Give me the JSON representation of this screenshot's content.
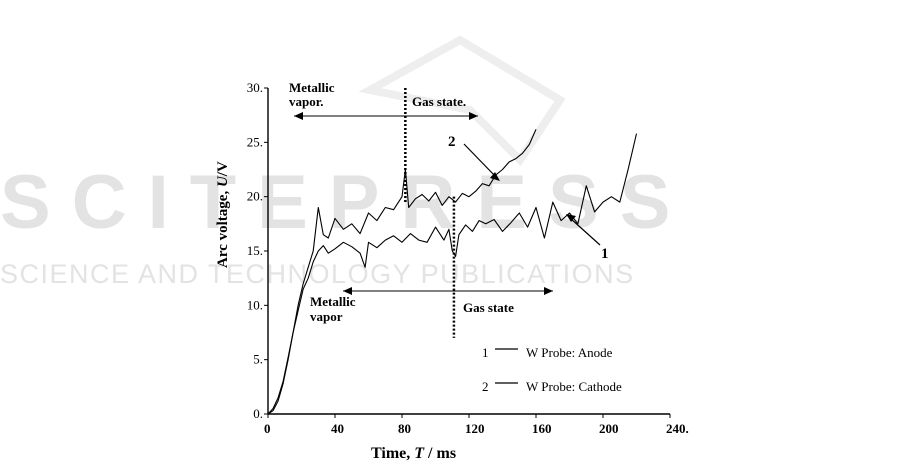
{
  "watermark": {
    "main": "SCITEPRESS",
    "sub": "SCIENCE AND TECHNOLOGY PUBLICATIONS",
    "color": "#e3e3e3"
  },
  "chart_data": {
    "type": "line",
    "xlabel_prefix": "Time, ",
    "xlabel_var": "T",
    "xlabel_unit": " / ms",
    "ylabel_prefix": "Arc voltage, ",
    "ylabel_var": "U",
    "ylabel_unit": "/V",
    "xlim": [
      0,
      240
    ],
    "ylim": [
      0,
      30
    ],
    "x_ticks": [
      "0",
      "40",
      "80",
      "120",
      "160",
      "200",
      "240."
    ],
    "y_ticks": [
      "0.",
      "5.",
      "10.",
      "15.",
      "20.",
      "25.",
      "30."
    ],
    "grid": false,
    "legend": [
      {
        "num": "1",
        "text": "W Probe: Anode"
      },
      {
        "num": "2",
        "text": "W Probe: Cathode"
      }
    ],
    "annotations": {
      "top_metallic_1": "Metallic",
      "top_metallic_2": "vapor.",
      "top_gas": "Gas state.",
      "bottom_metallic_1": "Metallic",
      "bottom_metallic_2": "vapor",
      "bottom_gas": "Gas state",
      "label_1": "1",
      "label_2": "2"
    },
    "dividers": [
      {
        "x": 82,
        "y_from": 30,
        "y_to": 19.5
      },
      {
        "x": 111,
        "y_from": 20,
        "y_to": 7
      }
    ],
    "series": [
      {
        "id": "1",
        "color": "#000000",
        "points": [
          [
            0,
            0
          ],
          [
            3,
            0.5
          ],
          [
            6,
            1.5
          ],
          [
            9,
            3
          ],
          [
            12,
            5.2
          ],
          [
            15,
            7.5
          ],
          [
            18,
            9.5
          ],
          [
            21,
            11.5
          ],
          [
            24,
            12.5
          ],
          [
            27,
            14
          ],
          [
            30,
            15
          ],
          [
            33,
            15.5
          ],
          [
            36,
            14.8
          ],
          [
            40,
            15.2
          ],
          [
            45,
            15.8
          ],
          [
            50,
            15.4
          ],
          [
            55,
            14.8
          ],
          [
            58,
            13.5
          ],
          [
            60,
            15.8
          ],
          [
            65,
            15.3
          ],
          [
            70,
            16
          ],
          [
            75,
            16.4
          ],
          [
            80,
            15.8
          ],
          [
            85,
            16.6
          ],
          [
            90,
            16
          ],
          [
            95,
            15.8
          ],
          [
            100,
            17.2
          ],
          [
            105,
            16
          ],
          [
            108,
            17
          ],
          [
            110,
            15
          ],
          [
            112,
            14.5
          ],
          [
            114,
            16.5
          ],
          [
            118,
            17.4
          ],
          [
            122,
            16.8
          ],
          [
            126,
            17.8
          ],
          [
            130,
            17.5
          ],
          [
            135,
            17.9
          ],
          [
            140,
            16.8
          ],
          [
            145,
            17.6
          ],
          [
            150,
            18.5
          ],
          [
            155,
            17.2
          ],
          [
            160,
            19
          ],
          [
            165,
            16.2
          ],
          [
            170,
            19.5
          ],
          [
            175,
            17.8
          ],
          [
            180,
            18.5
          ],
          [
            185,
            17.5
          ],
          [
            190,
            21
          ],
          [
            195,
            18.6
          ],
          [
            200,
            19.5
          ],
          [
            205,
            20
          ],
          [
            210,
            19.5
          ],
          [
            215,
            22.5
          ],
          [
            220,
            25.8
          ]
        ]
      },
      {
        "id": "2",
        "color": "#000000",
        "points": [
          [
            0,
            0
          ],
          [
            3,
            0.3
          ],
          [
            6,
            1.2
          ],
          [
            9,
            2.8
          ],
          [
            12,
            5
          ],
          [
            15,
            7.5
          ],
          [
            18,
            10
          ],
          [
            21,
            12
          ],
          [
            24,
            13.5
          ],
          [
            27,
            15
          ],
          [
            30,
            19
          ],
          [
            33,
            16.5
          ],
          [
            36,
            16.2
          ],
          [
            40,
            18
          ],
          [
            45,
            17
          ],
          [
            50,
            17.5
          ],
          [
            55,
            16.6
          ],
          [
            60,
            18.5
          ],
          [
            65,
            17.8
          ],
          [
            70,
            19
          ],
          [
            75,
            18.8
          ],
          [
            80,
            20
          ],
          [
            82,
            22.5
          ],
          [
            84,
            19
          ],
          [
            88,
            19.8
          ],
          [
            92,
            20.2
          ],
          [
            96,
            19.6
          ],
          [
            100,
            20.4
          ],
          [
            104,
            19.2
          ],
          [
            108,
            20
          ],
          [
            112,
            19.5
          ],
          [
            116,
            20.3
          ],
          [
            120,
            20
          ],
          [
            124,
            20.5
          ],
          [
            128,
            21.2
          ],
          [
            132,
            21
          ],
          [
            136,
            22
          ],
          [
            140,
            22.5
          ],
          [
            144,
            23.2
          ],
          [
            148,
            23.5
          ],
          [
            152,
            24
          ],
          [
            156,
            24.8
          ],
          [
            160,
            26.2
          ]
        ]
      }
    ]
  }
}
